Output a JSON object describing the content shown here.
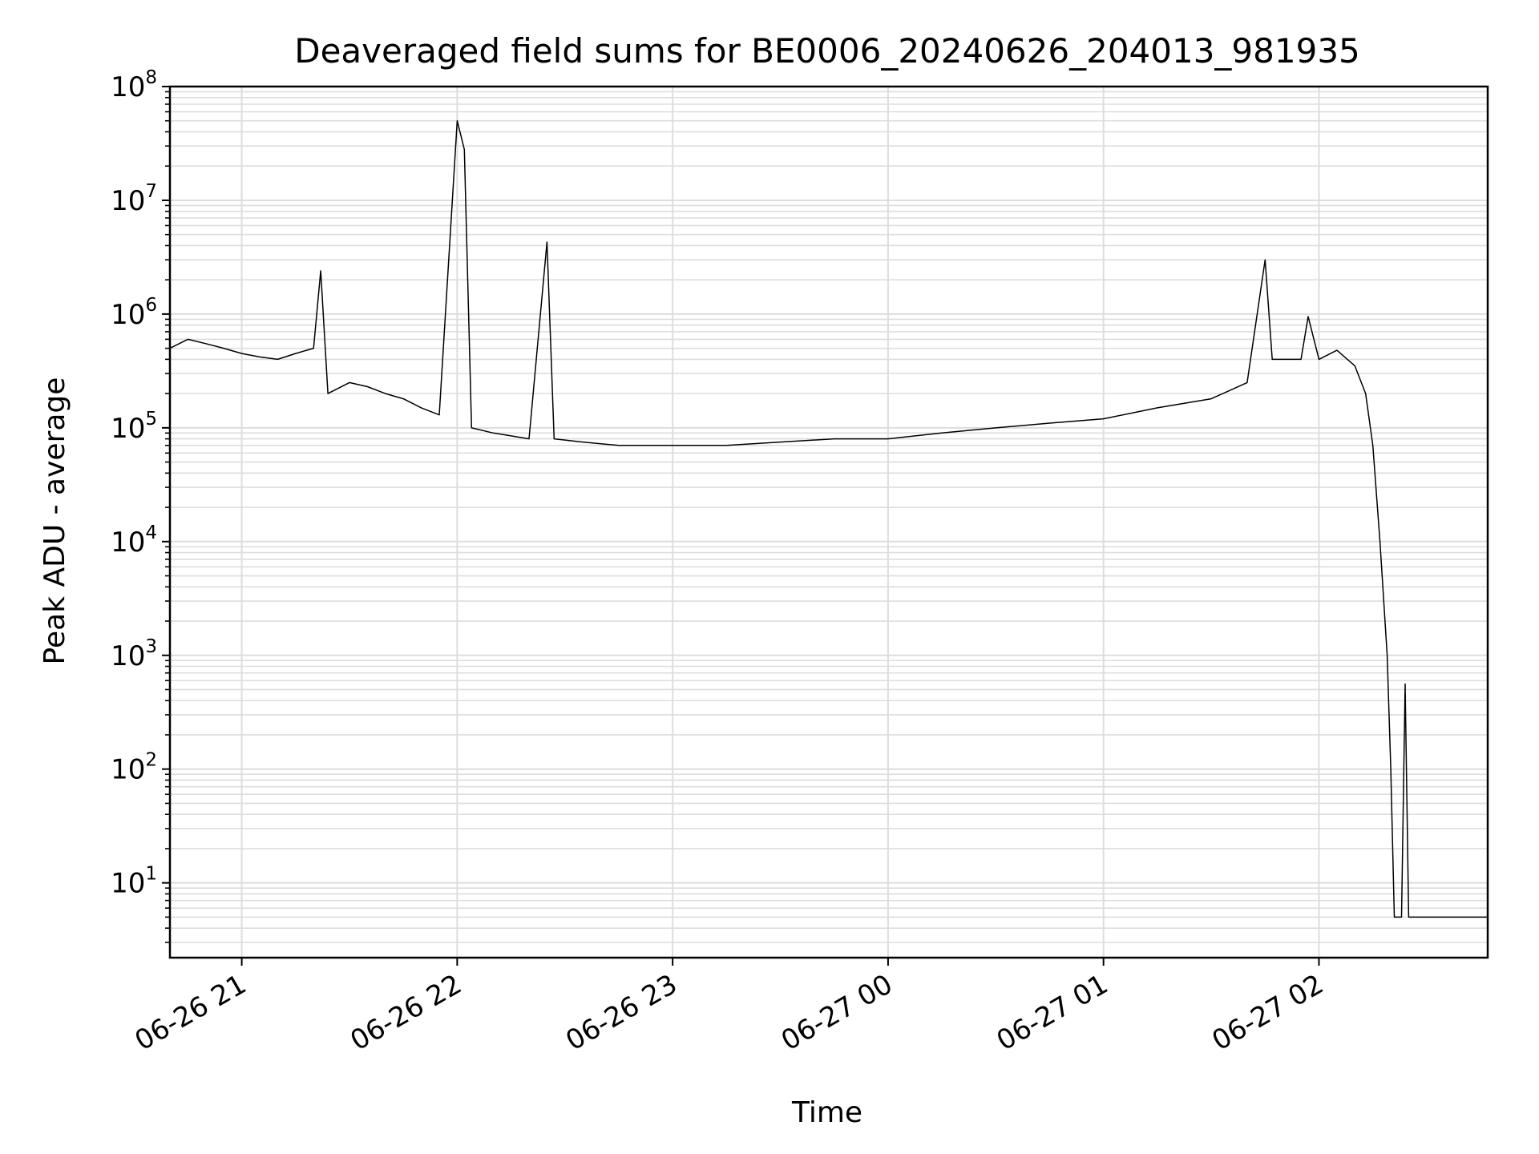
{
  "chart_data": {
    "type": "line",
    "title": "Deaveraged field sums for BE0006_20240626_204013_981935",
    "xlabel": "Time",
    "ylabel": "Peak ADU - average",
    "yscale": "log",
    "ylim": [
      2.2,
      100000000
    ],
    "xlim": [
      "2024-06-26 20:40",
      "2024-06-27 02:47"
    ],
    "grid": true,
    "grid_minor": true,
    "line_color": "#000000",
    "grid_color": "#dddddd",
    "x_ticks": [
      {
        "value": "2024-06-26 21:00",
        "label": "06-26 21"
      },
      {
        "value": "2024-06-26 22:00",
        "label": "06-26 22"
      },
      {
        "value": "2024-06-26 23:00",
        "label": "06-26 23"
      },
      {
        "value": "2024-06-27 00:00",
        "label": "06-27 00"
      },
      {
        "value": "2024-06-27 01:00",
        "label": "06-27 01"
      },
      {
        "value": "2024-06-27 02:00",
        "label": "06-27 02"
      }
    ],
    "y_ticks": [
      {
        "value": 10,
        "base": "10",
        "exp": "1"
      },
      {
        "value": 100,
        "base": "10",
        "exp": "2"
      },
      {
        "value": 1000,
        "base": "10",
        "exp": "3"
      },
      {
        "value": 10000,
        "base": "10",
        "exp": "4"
      },
      {
        "value": 100000,
        "base": "10",
        "exp": "5"
      },
      {
        "value": 1000000,
        "base": "10",
        "exp": "6"
      },
      {
        "value": 10000000,
        "base": "10",
        "exp": "7"
      },
      {
        "value": 100000000,
        "base": "10",
        "exp": "8"
      }
    ],
    "series": [
      {
        "points": [
          [
            "2024-06-26 20:40",
            500000
          ],
          [
            "2024-06-26 20:45",
            600000
          ],
          [
            "2024-06-26 20:50",
            550000
          ],
          [
            "2024-06-26 20:55",
            500000
          ],
          [
            "2024-06-26 21:00",
            450000
          ],
          [
            "2024-06-26 21:05",
            420000
          ],
          [
            "2024-06-26 21:10",
            400000
          ],
          [
            "2024-06-26 21:15",
            450000
          ],
          [
            "2024-06-26 21:20",
            500000
          ],
          [
            "2024-06-26 21:22",
            2400000
          ],
          [
            "2024-06-26 21:24",
            200000
          ],
          [
            "2024-06-26 21:30",
            250000
          ],
          [
            "2024-06-26 21:35",
            230000
          ],
          [
            "2024-06-26 21:40",
            200000
          ],
          [
            "2024-06-26 21:45",
            180000
          ],
          [
            "2024-06-26 21:50",
            150000
          ],
          [
            "2024-06-26 21:55",
            130000
          ],
          [
            "2024-06-26 22:00",
            50000000
          ],
          [
            "2024-06-26 22:02",
            28000000
          ],
          [
            "2024-06-26 22:04",
            100000
          ],
          [
            "2024-06-26 22:10",
            90000
          ],
          [
            "2024-06-26 22:15",
            85000
          ],
          [
            "2024-06-26 22:20",
            80000
          ],
          [
            "2024-06-26 22:25",
            4300000
          ],
          [
            "2024-06-26 22:27",
            80000
          ],
          [
            "2024-06-26 22:35",
            75000
          ],
          [
            "2024-06-26 22:45",
            70000
          ],
          [
            "2024-06-26 23:00",
            70000
          ],
          [
            "2024-06-26 23:15",
            70000
          ],
          [
            "2024-06-26 23:30",
            75000
          ],
          [
            "2024-06-26 23:45",
            80000
          ],
          [
            "2024-06-27 00:00",
            80000
          ],
          [
            "2024-06-27 00:15",
            90000
          ],
          [
            "2024-06-27 00:30",
            100000
          ],
          [
            "2024-06-27 00:45",
            110000
          ],
          [
            "2024-06-27 01:00",
            120000
          ],
          [
            "2024-06-27 01:15",
            150000
          ],
          [
            "2024-06-27 01:30",
            180000
          ],
          [
            "2024-06-27 01:40",
            250000
          ],
          [
            "2024-06-27 01:45",
            3000000
          ],
          [
            "2024-06-27 01:47",
            400000
          ],
          [
            "2024-06-27 01:55",
            400000
          ],
          [
            "2024-06-27 01:57",
            950000
          ],
          [
            "2024-06-27 02:00",
            400000
          ],
          [
            "2024-06-27 02:05",
            480000
          ],
          [
            "2024-06-27 02:10",
            350000
          ],
          [
            "2024-06-27 02:13",
            200000
          ],
          [
            "2024-06-27 02:15",
            70000
          ],
          [
            "2024-06-27 02:17",
            10000
          ],
          [
            "2024-06-27 02:19",
            1000
          ],
          [
            "2024-06-27 02:20",
            100
          ],
          [
            "2024-06-27 02:21",
            5
          ],
          [
            "2024-06-27 02:23",
            5
          ],
          [
            "2024-06-27 02:24",
            560
          ],
          [
            "2024-06-27 02:25",
            5
          ],
          [
            "2024-06-27 02:47",
            5
          ]
        ]
      }
    ]
  }
}
